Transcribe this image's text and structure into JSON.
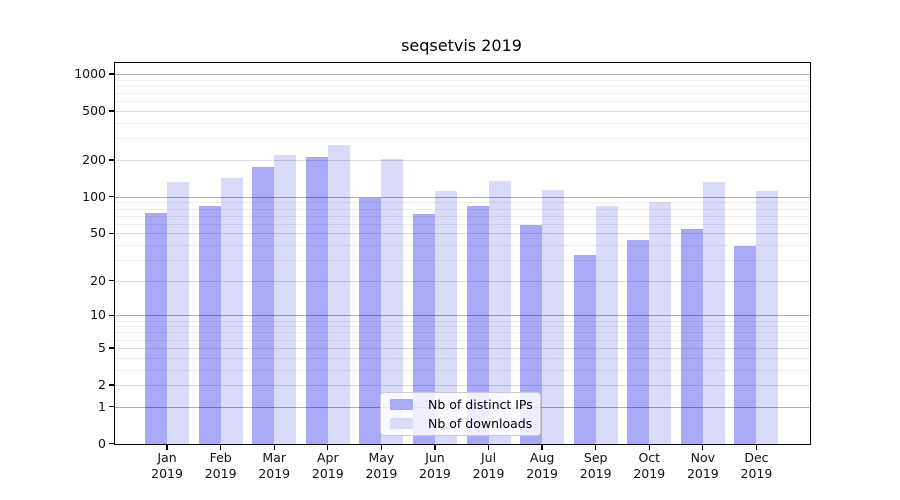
{
  "title": "seqsetvis 2019",
  "colors": {
    "ips_bar": "#a9a9f8",
    "downloads_bar": "#dadaf9",
    "grid_major": "rgba(0,0,0,0.32)",
    "grid_mid": "rgba(0,0,0,0.13)",
    "grid_minor": "rgba(0,0,0,0.065)",
    "axis": "#000000",
    "legend_border": "#cccccc"
  },
  "legend": {
    "items": [
      {
        "label": "Nb of distinct IPs",
        "color_key": "ips_bar"
      },
      {
        "label": "Nb of downloads",
        "color_key": "downloads_bar"
      }
    ]
  },
  "y_axis": {
    "tick_values": [
      0,
      1,
      2,
      5,
      10,
      20,
      50,
      100,
      200,
      500,
      1000
    ],
    "tick_labels": [
      "0",
      "1",
      "2",
      "5",
      "10",
      "20",
      "50",
      "100",
      "200",
      "500",
      "1000"
    ]
  },
  "x_axis": {
    "months": [
      "Jan",
      "Feb",
      "Mar",
      "Apr",
      "May",
      "Jun",
      "Jul",
      "Aug",
      "Sep",
      "Oct",
      "Nov",
      "Dec"
    ],
    "year": "2019"
  },
  "chart_data": {
    "type": "bar",
    "title": "seqsetvis 2019",
    "categories": [
      "Jan 2019",
      "Feb 2019",
      "Mar 2019",
      "Apr 2019",
      "May 2019",
      "Jun 2019",
      "Jul 2019",
      "Aug 2019",
      "Sep 2019",
      "Oct 2019",
      "Nov 2019",
      "Dec 2019"
    ],
    "series": [
      {
        "name": "Nb of distinct IPs",
        "values": [
          74,
          84,
          174,
          212,
          97,
          72,
          84,
          59,
          33,
          44,
          54,
          39
        ]
      },
      {
        "name": "Nb of downloads",
        "values": [
          133,
          141,
          219,
          264,
          203,
          112,
          134,
          113,
          84,
          91,
          132,
          111
        ]
      }
    ],
    "xlabel": "",
    "ylabel": "",
    "yscale": "log1p",
    "ylim": [
      0,
      1250
    ],
    "yticks": [
      0,
      1,
      2,
      5,
      10,
      20,
      50,
      100,
      200,
      500,
      1000
    ],
    "minor_gridlines": [
      3,
      4,
      6,
      7,
      8,
      9,
      30,
      40,
      60,
      70,
      80,
      90,
      300,
      400,
      600,
      700,
      800,
      900
    ],
    "grid": true,
    "legend_position": "lower center"
  }
}
